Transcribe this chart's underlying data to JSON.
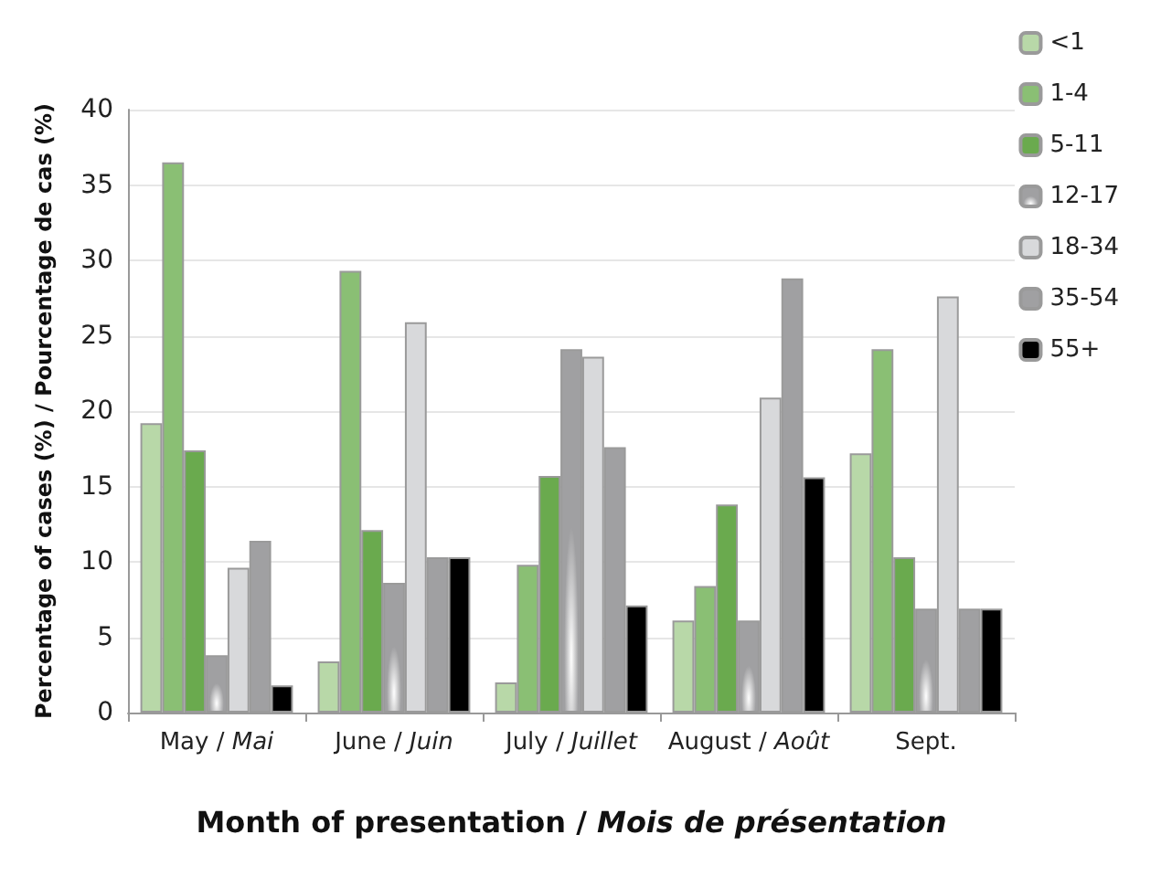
{
  "chart_data": {
    "type": "bar",
    "xlabel": "Month of presentation / Mois de présentation",
    "ylabel": "Percentage of cases (%) / Pourcentage de cas (%)",
    "categories": [
      "May / Mai",
      "June / Juin",
      "July / Juillet",
      "August / Août",
      "Sept."
    ],
    "series": [
      {
        "name": "<1",
        "color": "#b8d8a8",
        "values": [
          19.2,
          3.4,
          2.0,
          6.1,
          17.2
        ]
      },
      {
        "name": "1-4",
        "color": "#8abf74",
        "values": [
          36.5,
          29.3,
          9.8,
          8.4,
          24.1
        ]
      },
      {
        "name": "5-11",
        "color": "#6aaa4e",
        "values": [
          17.4,
          12.1,
          15.7,
          13.8,
          10.3
        ]
      },
      {
        "name": "12-17",
        "color": "#a0a0a2",
        "values": [
          3.8,
          8.6,
          24.1,
          6.1,
          6.9
        ]
      },
      {
        "name": "18-34",
        "color": "#d8d9db",
        "values": [
          9.6,
          25.9,
          23.6,
          20.9,
          27.6
        ]
      },
      {
        "name": "35-54",
        "color": "#a0a0a2",
        "values": [
          11.4,
          10.3,
          17.6,
          28.8,
          6.9
        ]
      },
      {
        "name": "55+",
        "color": "#000000",
        "values": [
          1.8,
          10.3,
          7.1,
          15.6,
          6.9
        ]
      }
    ],
    "ylim": [
      0,
      40
    ],
    "yticks": [
      0,
      5,
      10,
      15,
      20,
      25,
      30,
      35,
      40
    ],
    "grid": "y",
    "legend": "top right"
  }
}
